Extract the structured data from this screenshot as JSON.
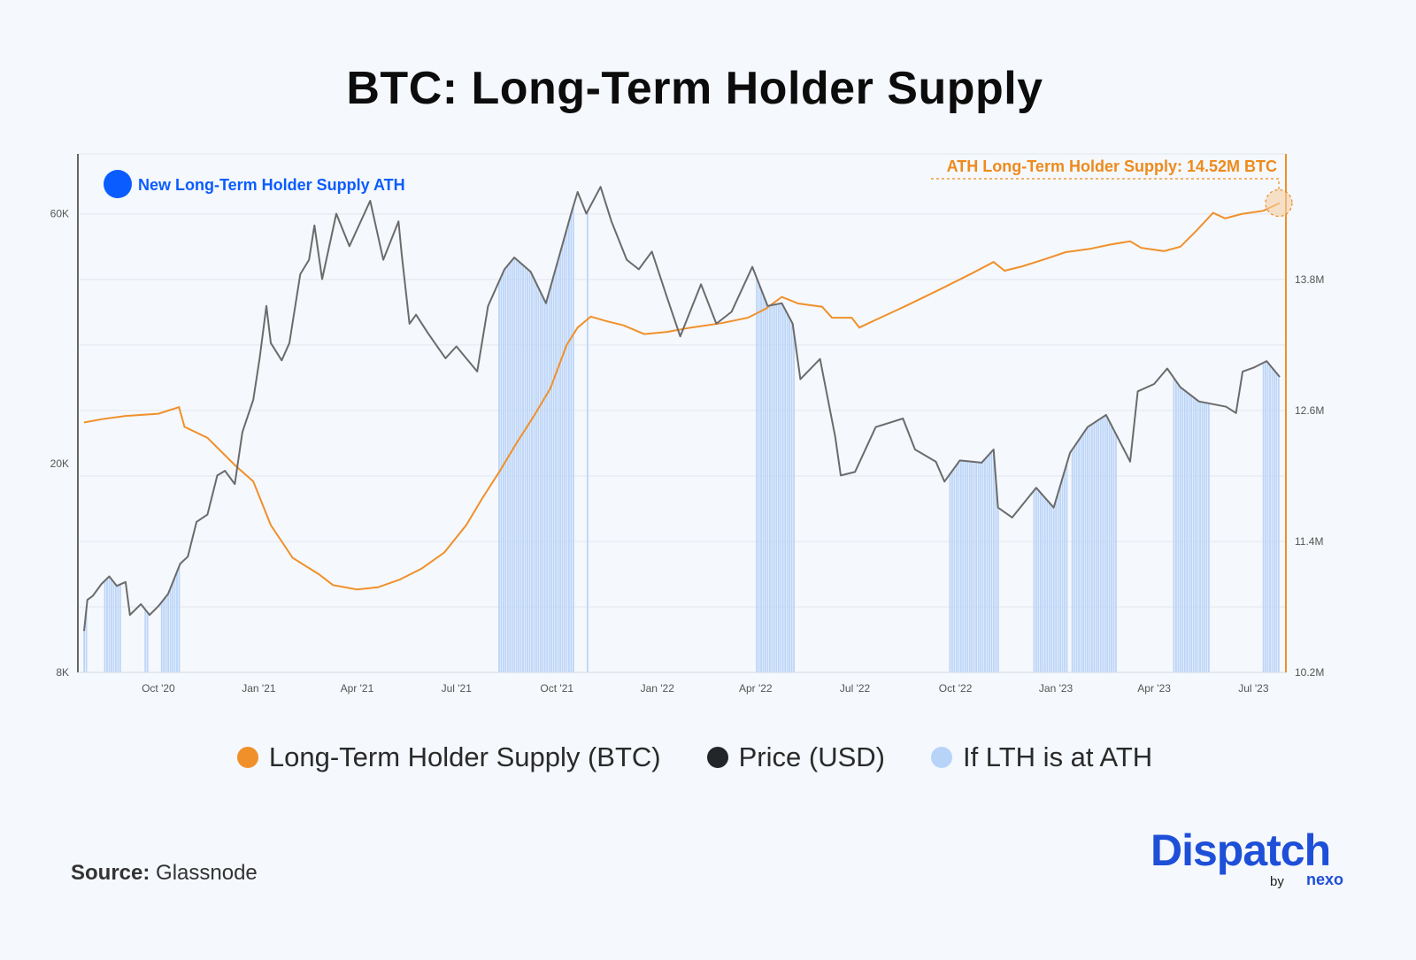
{
  "title": "BTC: Long-Term Holder Supply",
  "source_label": "Source:",
  "source_value": "Glassnode",
  "logo": {
    "word": "Dispatch",
    "by": "by",
    "partner": "nexo"
  },
  "colors": {
    "lth": "#f0902a",
    "price": "#6b6b6b",
    "ath_bars": "#a9c7f5",
    "ath_marker": "#0a5cff",
    "annotation": "#ee8a1c"
  },
  "chart_data": {
    "type": "line",
    "title": "BTC: Long-Term Holder Supply",
    "x_ticks": [
      "Oct '20",
      "Jan '21",
      "Apr '21",
      "Jul '21",
      "Oct '21",
      "Jan '22",
      "Apr '22",
      "Jul '22",
      "Oct '22",
      "Jan '23",
      "Apr '23",
      "Jul '23"
    ],
    "x_tick_dates": [
      "2020-10-01",
      "2021-01-01",
      "2021-04-01",
      "2021-07-01",
      "2021-10-01",
      "2022-01-01",
      "2022-04-01",
      "2022-07-01",
      "2022-10-01",
      "2023-01-01",
      "2023-04-01",
      "2023-07-01"
    ],
    "xlim": [
      "2020-07-25",
      "2023-07-25"
    ],
    "y_left": {
      "scale": "log",
      "ticks": [
        "8K",
        "20K",
        "60K"
      ],
      "tick_values": [
        8000,
        20000,
        60000
      ],
      "range": [
        8000,
        78000
      ]
    },
    "y_right": {
      "scale": "linear",
      "ticks": [
        "10.2M",
        "11.4M",
        "12.6M",
        "13.8M"
      ],
      "tick_values": [
        10.2,
        11.4,
        12.6,
        13.8
      ],
      "range": [
        10.2,
        14.95
      ]
    },
    "grid": true,
    "legend": {
      "placement": "bottom",
      "items": [
        {
          "label": "Long-Term Holder Supply (BTC)",
          "color": "#f0902a"
        },
        {
          "label": "Price (USD)",
          "color": "#222628"
        },
        {
          "label": "If LTH is at ATH",
          "color": "#b8d3f8"
        }
      ]
    },
    "marker_label": "New Long-Term Holder Supply ATH",
    "annotation": "ATH Long-Term Holder Supply: 14.52M BTC",
    "series": [
      {
        "name": "Price (USD)",
        "axis": "left",
        "points": [
          [
            "2020-07-25",
            9600
          ],
          [
            "2020-07-28",
            11000
          ],
          [
            "2020-08-02",
            11200
          ],
          [
            "2020-08-10",
            11800
          ],
          [
            "2020-08-17",
            12200
          ],
          [
            "2020-08-24",
            11700
          ],
          [
            "2020-09-01",
            11900
          ],
          [
            "2020-09-05",
            10300
          ],
          [
            "2020-09-15",
            10800
          ],
          [
            "2020-09-23",
            10300
          ],
          [
            "2020-10-01",
            10700
          ],
          [
            "2020-10-10",
            11300
          ],
          [
            "2020-10-21",
            12900
          ],
          [
            "2020-10-28",
            13300
          ],
          [
            "2020-11-05",
            15500
          ],
          [
            "2020-11-15",
            16000
          ],
          [
            "2020-11-24",
            19000
          ],
          [
            "2020-12-01",
            19400
          ],
          [
            "2020-12-10",
            18300
          ],
          [
            "2020-12-17",
            23000
          ],
          [
            "2020-12-27",
            26500
          ],
          [
            "2021-01-02",
            32000
          ],
          [
            "2021-01-08",
            40000
          ],
          [
            "2021-01-12",
            34000
          ],
          [
            "2021-01-22",
            31500
          ],
          [
            "2021-01-29",
            34000
          ],
          [
            "2021-02-08",
            46000
          ],
          [
            "2021-02-16",
            49000
          ],
          [
            "2021-02-21",
            57000
          ],
          [
            "2021-02-28",
            45000
          ],
          [
            "2021-03-13",
            60000
          ],
          [
            "2021-03-25",
            52000
          ],
          [
            "2021-04-13",
            63500
          ],
          [
            "2021-04-25",
            49000
          ],
          [
            "2021-05-09",
            58000
          ],
          [
            "2021-05-12",
            50000
          ],
          [
            "2021-05-19",
            37000
          ],
          [
            "2021-05-25",
            38500
          ],
          [
            "2021-06-05",
            35500
          ],
          [
            "2021-06-21",
            31800
          ],
          [
            "2021-07-01",
            33500
          ],
          [
            "2021-07-20",
            30000
          ],
          [
            "2021-07-30",
            40000
          ],
          [
            "2021-08-14",
            47000
          ],
          [
            "2021-08-23",
            49500
          ],
          [
            "2021-09-07",
            46500
          ],
          [
            "2021-09-21",
            40500
          ],
          [
            "2021-10-01",
            48000
          ],
          [
            "2021-10-15",
            61000
          ],
          [
            "2021-10-20",
            66000
          ],
          [
            "2021-10-28",
            60000
          ],
          [
            "2021-11-10",
            67500
          ],
          [
            "2021-11-20",
            58000
          ],
          [
            "2021-12-04",
            49000
          ],
          [
            "2021-12-15",
            47000
          ],
          [
            "2021-12-27",
            50800
          ],
          [
            "2022-01-10",
            41500
          ],
          [
            "2022-01-22",
            35000
          ],
          [
            "2022-02-10",
            44000
          ],
          [
            "2022-02-24",
            37000
          ],
          [
            "2022-03-10",
            39000
          ],
          [
            "2022-03-29",
            47500
          ],
          [
            "2022-04-12",
            40000
          ],
          [
            "2022-04-25",
            40500
          ],
          [
            "2022-05-05",
            37000
          ],
          [
            "2022-05-12",
            29000
          ],
          [
            "2022-05-30",
            31700
          ],
          [
            "2022-06-13",
            22500
          ],
          [
            "2022-06-18",
            19000
          ],
          [
            "2022-07-01",
            19300
          ],
          [
            "2022-07-20",
            23500
          ],
          [
            "2022-08-14",
            24400
          ],
          [
            "2022-08-25",
            21300
          ],
          [
            "2022-09-13",
            20200
          ],
          [
            "2022-09-21",
            18500
          ],
          [
            "2022-10-05",
            20300
          ],
          [
            "2022-10-25",
            20100
          ],
          [
            "2022-11-05",
            21300
          ],
          [
            "2022-11-09",
            16500
          ],
          [
            "2022-11-22",
            15800
          ],
          [
            "2022-12-14",
            18000
          ],
          [
            "2022-12-30",
            16500
          ],
          [
            "2023-01-14",
            21000
          ],
          [
            "2023-01-30",
            23500
          ],
          [
            "2023-02-16",
            24800
          ],
          [
            "2023-03-10",
            20200
          ],
          [
            "2023-03-17",
            27500
          ],
          [
            "2023-04-01",
            28400
          ],
          [
            "2023-04-13",
            30400
          ],
          [
            "2023-04-25",
            28000
          ],
          [
            "2023-05-12",
            26300
          ],
          [
            "2023-06-06",
            25700
          ],
          [
            "2023-06-15",
            25000
          ],
          [
            "2023-06-21",
            30000
          ],
          [
            "2023-07-01",
            30500
          ],
          [
            "2023-07-13",
            31400
          ],
          [
            "2023-07-25",
            29300
          ]
        ]
      },
      {
        "name": "Long-Term Holder Supply (BTC)",
        "axis": "right",
        "unit": "M BTC",
        "points": [
          [
            "2020-07-25",
            12.49
          ],
          [
            "2020-08-10",
            12.52
          ],
          [
            "2020-09-01",
            12.55
          ],
          [
            "2020-10-01",
            12.57
          ],
          [
            "2020-10-20",
            12.63
          ],
          [
            "2020-10-25",
            12.45
          ],
          [
            "2020-11-15",
            12.35
          ],
          [
            "2020-12-10",
            12.1
          ],
          [
            "2020-12-27",
            11.95
          ],
          [
            "2021-01-12",
            11.55
          ],
          [
            "2021-02-01",
            11.25
          ],
          [
            "2021-02-25",
            11.1
          ],
          [
            "2021-03-10",
            11.0
          ],
          [
            "2021-04-01",
            10.96
          ],
          [
            "2021-04-20",
            10.98
          ],
          [
            "2021-05-10",
            11.05
          ],
          [
            "2021-05-30",
            11.15
          ],
          [
            "2021-06-20",
            11.3
          ],
          [
            "2021-07-10",
            11.55
          ],
          [
            "2021-07-25",
            11.8
          ],
          [
            "2021-08-10",
            12.05
          ],
          [
            "2021-08-25",
            12.3
          ],
          [
            "2021-09-10",
            12.55
          ],
          [
            "2021-09-25",
            12.8
          ],
          [
            "2021-10-10",
            13.2
          ],
          [
            "2021-10-20",
            13.36
          ],
          [
            "2021-11-01",
            13.46
          ],
          [
            "2021-11-15",
            13.42
          ],
          [
            "2021-12-01",
            13.38
          ],
          [
            "2021-12-20",
            13.3
          ],
          [
            "2022-01-10",
            13.32
          ],
          [
            "2022-02-01",
            13.36
          ],
          [
            "2022-03-01",
            13.4
          ],
          [
            "2022-03-25",
            13.45
          ],
          [
            "2022-04-10",
            13.53
          ],
          [
            "2022-04-25",
            13.64
          ],
          [
            "2022-05-10",
            13.58
          ],
          [
            "2022-06-01",
            13.55
          ],
          [
            "2022-06-10",
            13.45
          ],
          [
            "2022-06-28",
            13.45
          ],
          [
            "2022-07-05",
            13.36
          ],
          [
            "2022-07-20",
            13.43
          ],
          [
            "2022-08-15",
            13.55
          ],
          [
            "2022-09-15",
            13.7
          ],
          [
            "2022-10-15",
            13.85
          ],
          [
            "2022-11-05",
            13.96
          ],
          [
            "2022-11-15",
            13.88
          ],
          [
            "2022-12-01",
            13.92
          ],
          [
            "2022-12-20",
            13.98
          ],
          [
            "2023-01-10",
            14.05
          ],
          [
            "2023-02-01",
            14.08
          ],
          [
            "2023-02-20",
            14.12
          ],
          [
            "2023-03-10",
            14.15
          ],
          [
            "2023-03-20",
            14.09
          ],
          [
            "2023-04-10",
            14.06
          ],
          [
            "2023-04-25",
            14.1
          ],
          [
            "2023-05-10",
            14.25
          ],
          [
            "2023-05-25",
            14.41
          ],
          [
            "2023-06-05",
            14.36
          ],
          [
            "2023-06-20",
            14.4
          ],
          [
            "2023-07-10",
            14.43
          ],
          [
            "2023-07-25",
            14.5
          ]
        ]
      },
      {
        "name": "If LTH is at ATH",
        "type": "bar-ranges",
        "ranges": [
          [
            "2020-07-25",
            "2020-07-28"
          ],
          [
            "2020-08-13",
            "2020-08-27"
          ],
          [
            "2020-09-19",
            "2020-09-22"
          ],
          [
            "2020-10-04",
            "2020-10-20"
          ],
          [
            "2021-08-09",
            "2021-10-17"
          ],
          [
            "2021-10-29",
            "2021-10-29"
          ],
          [
            "2022-04-02",
            "2022-05-07"
          ],
          [
            "2022-09-26",
            "2022-11-09"
          ],
          [
            "2022-12-12",
            "2023-01-11"
          ],
          [
            "2023-01-16",
            "2023-02-26"
          ],
          [
            "2023-04-19",
            "2023-05-22"
          ],
          [
            "2023-07-10",
            "2023-07-25"
          ]
        ]
      }
    ]
  }
}
